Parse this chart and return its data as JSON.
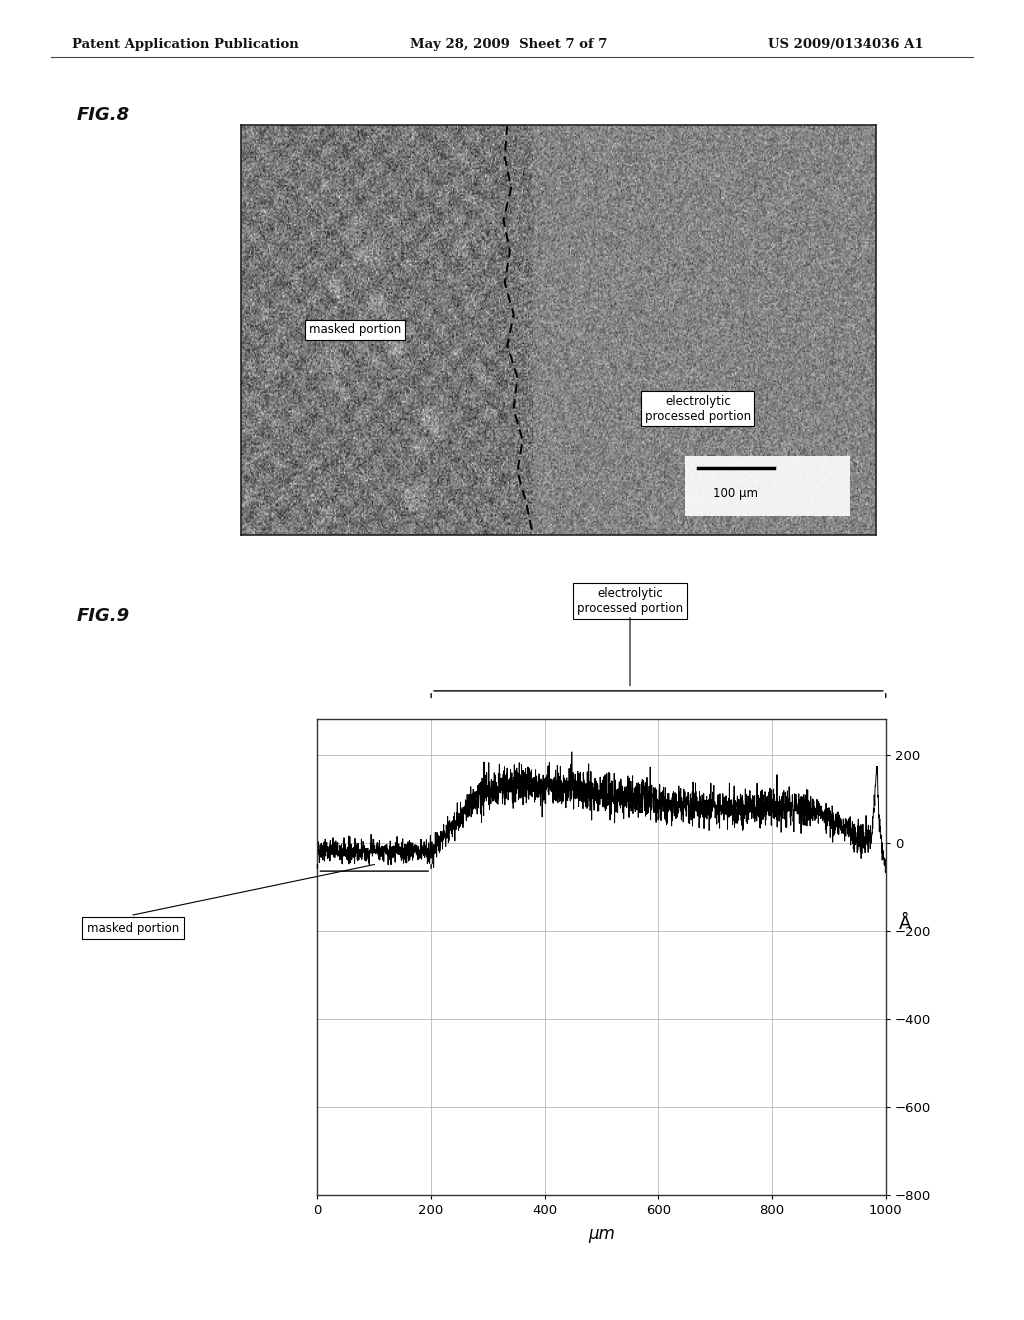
{
  "page_title_left": "Patent Application Publication",
  "page_title_center": "May 28, 2009  Sheet 7 of 7",
  "page_title_right": "US 2009/0134036 A1",
  "fig8_label": "FIG.8",
  "fig9_label": "FIG.9",
  "fig8_text_left": "masked portion",
  "fig8_text_right": "electrolytic\nprocessed portion",
  "fig8_scalebar_text": "100 μm",
  "fig9_xlabel": "μm",
  "fig9_ylabel": "Å",
  "fig9_yticks": [
    200,
    0,
    -200,
    -400,
    -600,
    -800
  ],
  "fig9_xticks": [
    0,
    200,
    400,
    600,
    800,
    1000
  ],
  "fig9_annotation_electrolytic": "electrolytic\nprocessed portion",
  "fig9_annotation_masked": "masked portion",
  "fig9_xrange": [
    0,
    1000
  ],
  "fig9_yrange": [
    -800,
    280
  ],
  "page_bg": "#ffffff"
}
